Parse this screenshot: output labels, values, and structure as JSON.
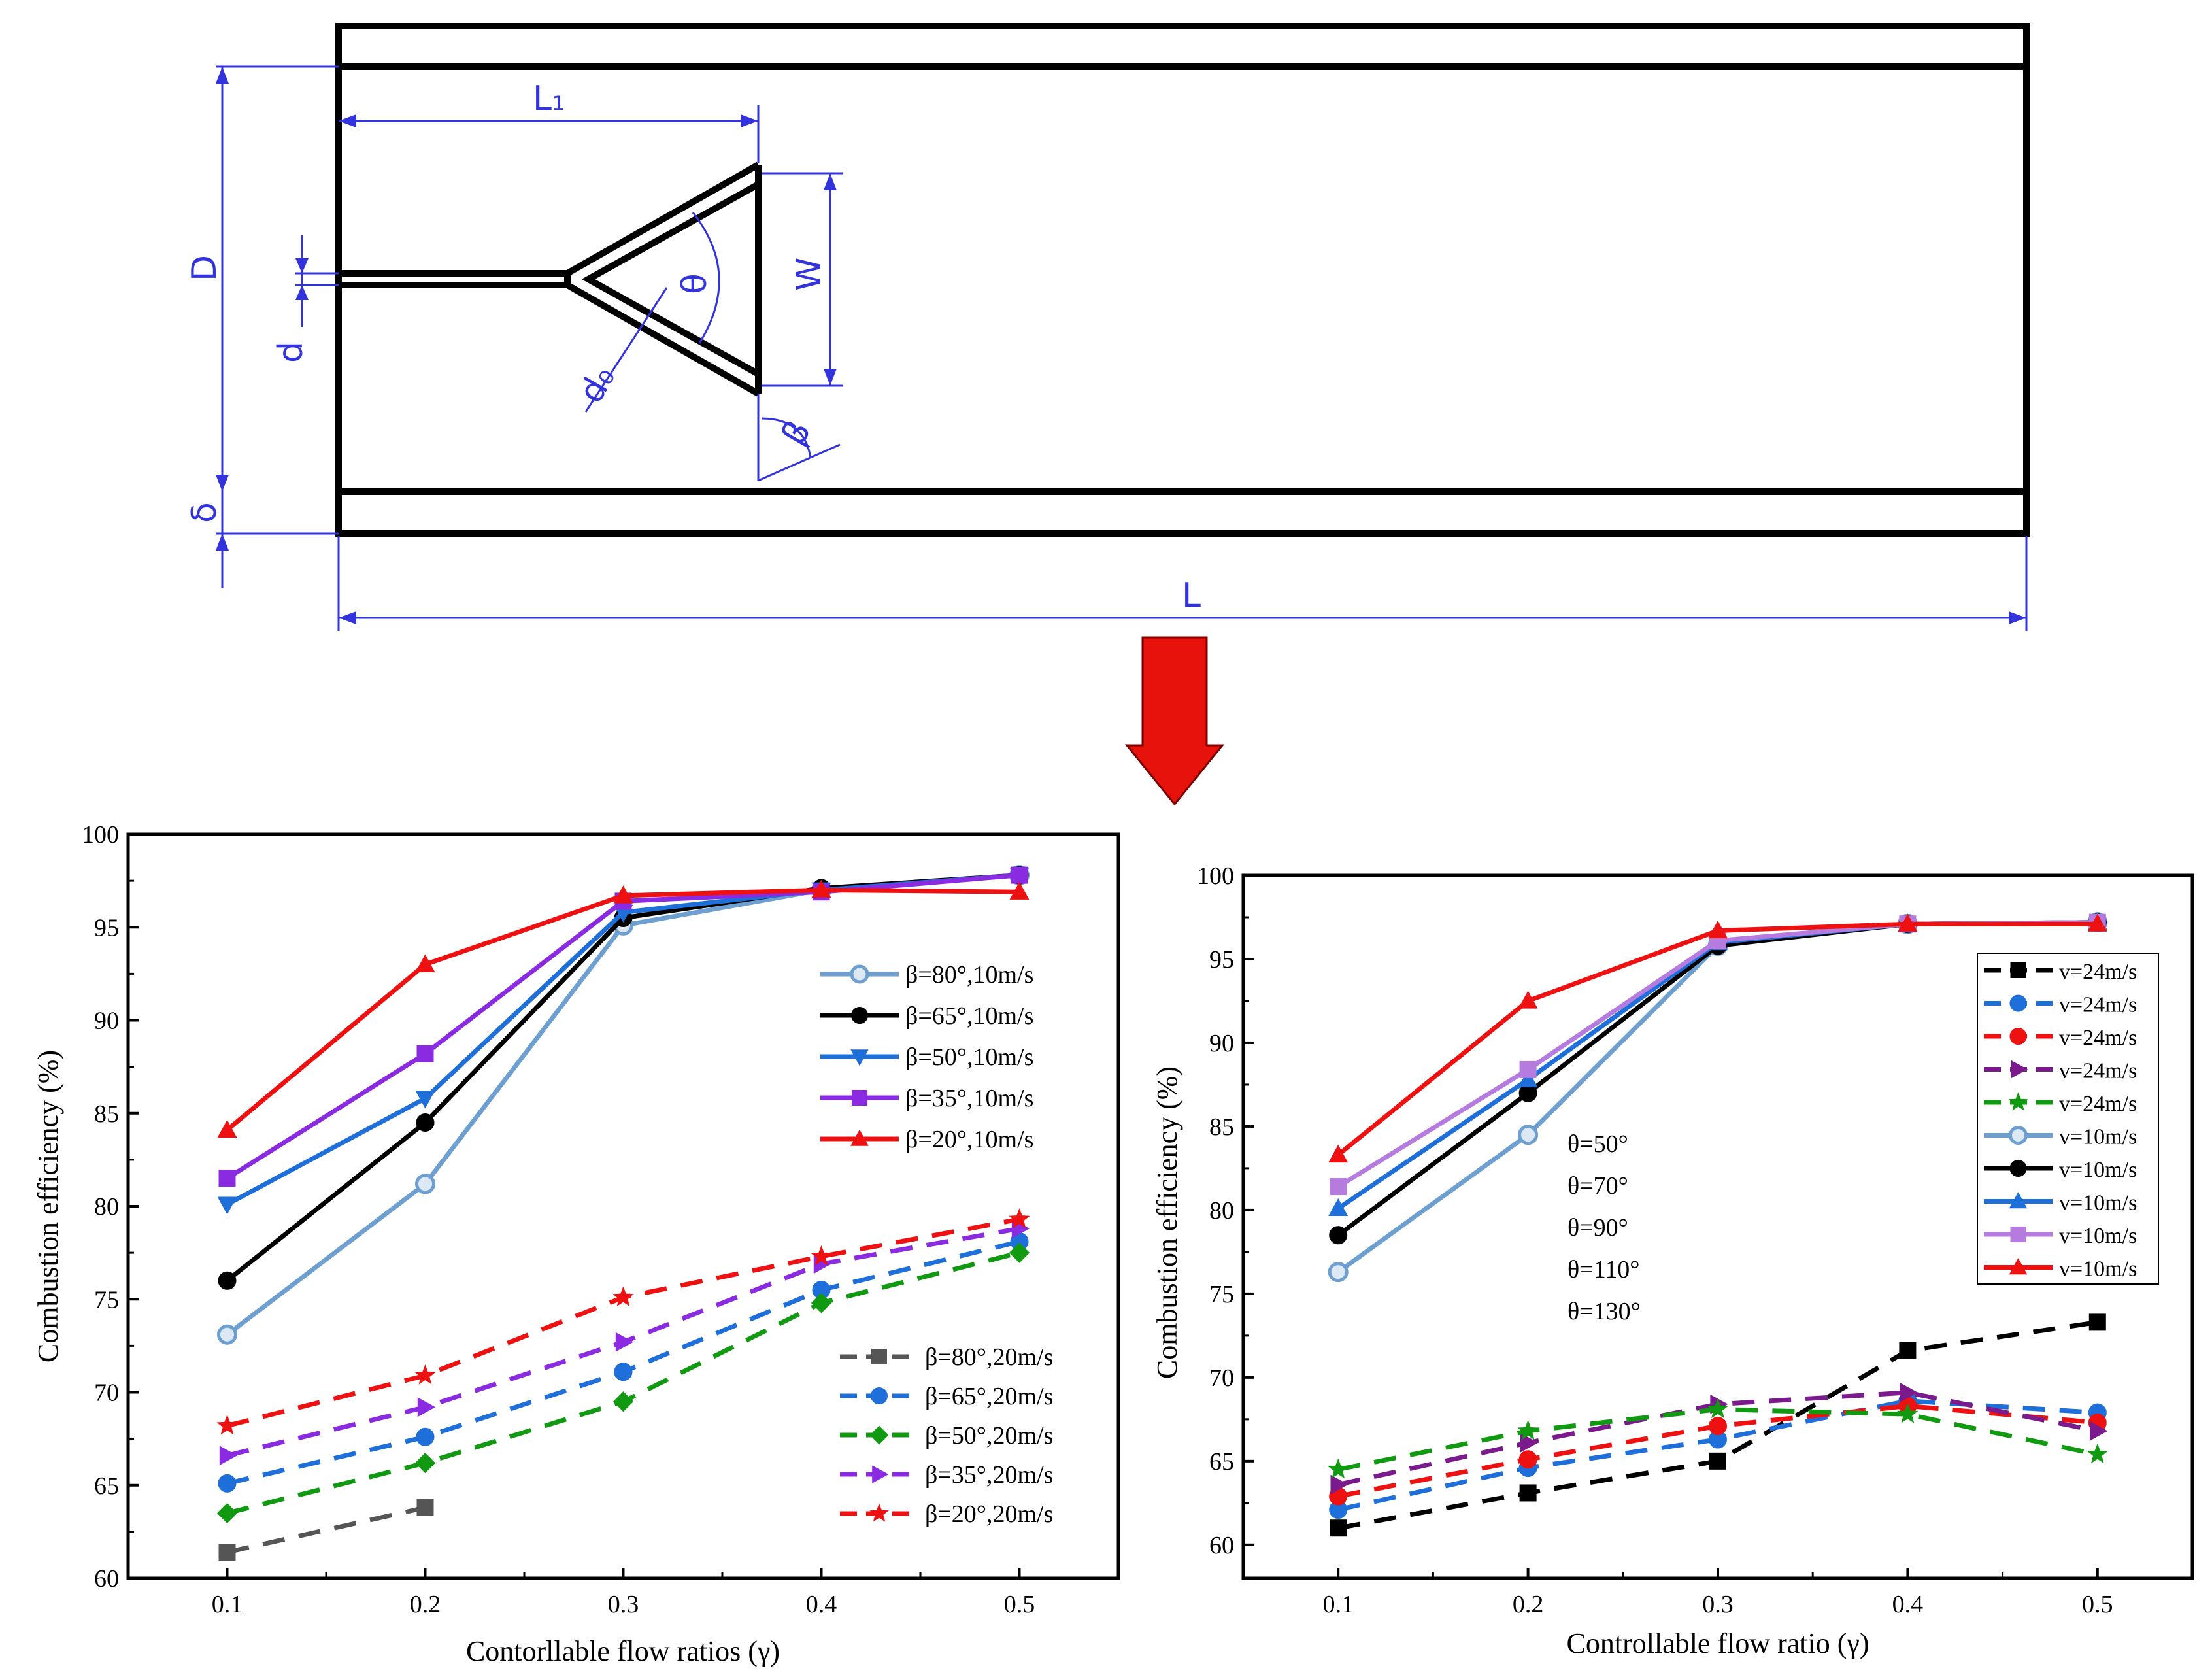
{
  "colors": {
    "diagram_line": "#000000",
    "dimension": "#3333dd",
    "arrow": "#e8120c"
  },
  "diagram": {
    "labels": {
      "overall_length": "L",
      "inner_length": "L₁",
      "diameter": "D",
      "rod_diameter": "d",
      "wall_thickness": "δ",
      "width": "W",
      "angle_theta": "θ",
      "gutter_thickness": "d₀",
      "angle_beta": "β"
    }
  },
  "chart_data": [
    {
      "type": "line",
      "title": "",
      "xlabel": "Contorllable flow ratios (γ)",
      "ylabel": "Combustion efficiency (%)",
      "x": [
        0.1,
        0.2,
        0.3,
        0.4,
        0.5
      ],
      "xticks": [
        "0.1",
        "0.2",
        "0.3",
        "0.4",
        "0.5"
      ],
      "yticks": [
        "60",
        "65",
        "70",
        "75",
        "80",
        "85",
        "90",
        "95",
        "100"
      ],
      "xlim": [
        0.05,
        0.55
      ],
      "ylim": [
        60,
        100
      ],
      "series": [
        {
          "name": "β=80°,10m/s",
          "color": "#6d9fd1",
          "marker": "circle-open",
          "dash": false,
          "values": [
            73.1,
            81.2,
            95.1,
            97.0,
            97.8
          ]
        },
        {
          "name": "β=65°,10m/s",
          "color": "#000000",
          "marker": "circle",
          "dash": false,
          "values": [
            76.0,
            84.5,
            95.5,
            97.1,
            97.8
          ]
        },
        {
          "name": "β=50°,10m/s",
          "color": "#1e6fd9",
          "marker": "triangle-down",
          "dash": false,
          "values": [
            80.1,
            85.8,
            95.8,
            97.0,
            97.8
          ]
        },
        {
          "name": "β=35°,10m/s",
          "color": "#8a2be2",
          "marker": "square",
          "dash": false,
          "values": [
            81.5,
            88.2,
            96.4,
            96.9,
            97.8
          ]
        },
        {
          "name": "β=20°,10m/s",
          "color": "#ee1111",
          "marker": "triangle-up",
          "dash": false,
          "values": [
            84.1,
            93.0,
            96.7,
            97.0,
            96.9
          ]
        },
        {
          "name": "β=80°,20m/s",
          "color": "#555555",
          "marker": "square",
          "dash": true,
          "values": [
            61.4,
            63.8,
            null,
            null,
            null
          ]
        },
        {
          "name": "β=65°,20m/s",
          "color": "#1e6fd9",
          "marker": "circle",
          "dash": true,
          "values": [
            65.1,
            67.6,
            71.1,
            75.5,
            78.1
          ]
        },
        {
          "name": "β=50°,20m/s",
          "color": "#119911",
          "marker": "diamond",
          "dash": true,
          "values": [
            63.5,
            66.2,
            69.5,
            74.8,
            77.5
          ]
        },
        {
          "name": "β=35°,20m/s",
          "color": "#8a2be2",
          "marker": "triangle-right",
          "dash": true,
          "values": [
            66.6,
            69.2,
            72.7,
            76.9,
            78.8
          ]
        },
        {
          "name": "β=20°,20m/s",
          "color": "#ee1111",
          "marker": "star",
          "dash": true,
          "values": [
            68.2,
            70.9,
            75.1,
            77.3,
            79.3
          ]
        }
      ],
      "legend": [
        "top-right",
        "bottom-right"
      ]
    },
    {
      "type": "line",
      "title": "",
      "xlabel": "Controllable flow ratio (γ)",
      "ylabel": "Combustion efficiency (%)",
      "x": [
        0.1,
        0.2,
        0.3,
        0.4,
        0.5
      ],
      "xticks": [
        "0.1",
        "0.2",
        "0.3",
        "0.4",
        "0.5"
      ],
      "yticks": [
        "60",
        "65",
        "70",
        "75",
        "80",
        "85",
        "90",
        "95",
        "100"
      ],
      "xlim": [
        0.05,
        0.55
      ],
      "ylim": [
        58,
        100
      ],
      "annotations": [
        "θ=50°",
        "θ=70°",
        "θ=90°",
        "θ=110°",
        "θ=130°"
      ],
      "series": [
        {
          "name": "v=24m/s",
          "color": "#000000",
          "marker": "square",
          "dash": true,
          "values": [
            61.0,
            63.1,
            65.0,
            71.6,
            73.3
          ]
        },
        {
          "name": "v=24m/s",
          "color": "#1e6fd9",
          "marker": "circle",
          "dash": true,
          "values": [
            62.1,
            64.6,
            66.3,
            68.6,
            67.9
          ]
        },
        {
          "name": "v=24m/s",
          "color": "#ee1111",
          "marker": "circle",
          "dash": true,
          "values": [
            62.9,
            65.1,
            67.1,
            68.3,
            67.3
          ]
        },
        {
          "name": "v=24m/s",
          "color": "#7a1a8c",
          "marker": "triangle-right",
          "dash": true,
          "values": [
            63.6,
            66.1,
            68.4,
            69.1,
            66.8
          ]
        },
        {
          "name": "v=24m/s",
          "color": "#119911",
          "marker": "star",
          "dash": true,
          "values": [
            64.5,
            66.8,
            68.1,
            67.8,
            65.4
          ]
        },
        {
          "name": "v=10m/s",
          "color": "#6d9fd1",
          "marker": "circle-open",
          "dash": false,
          "values": [
            76.3,
            84.5,
            95.8,
            97.1,
            97.2
          ]
        },
        {
          "name": "v=10m/s",
          "color": "#000000",
          "marker": "circle",
          "dash": false,
          "values": [
            78.5,
            87.0,
            95.8,
            97.1,
            97.2
          ]
        },
        {
          "name": "v=10m/s",
          "color": "#1e6fd9",
          "marker": "triangle-up",
          "dash": false,
          "values": [
            80.1,
            87.8,
            96.0,
            97.1,
            97.2
          ]
        },
        {
          "name": "v=10m/s",
          "color": "#b57bdf",
          "marker": "square",
          "dash": false,
          "values": [
            81.4,
            88.4,
            96.1,
            97.1,
            97.2
          ]
        },
        {
          "name": "v=10m/s",
          "color": "#ee1111",
          "marker": "triangle-up",
          "dash": false,
          "values": [
            83.3,
            92.5,
            96.7,
            97.1,
            97.1
          ]
        }
      ],
      "legend": "top-right"
    }
  ]
}
